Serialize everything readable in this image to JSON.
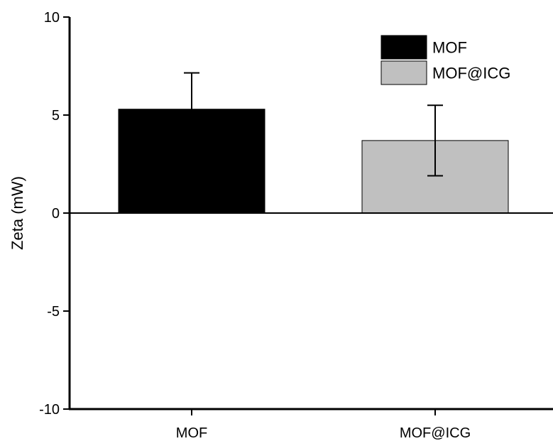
{
  "chart_data": {
    "type": "bar",
    "title": "",
    "xlabel": "",
    "ylabel": "Zeta (mW)",
    "ylim": [
      -10,
      10
    ],
    "yticks": [
      -10,
      -5,
      0,
      5,
      10
    ],
    "ytick_labels": [
      "-10",
      "-5",
      "0",
      "5",
      "10"
    ],
    "categories": [
      "MOF",
      "MOF@ICG"
    ],
    "values": [
      5.3,
      3.7
    ],
    "errors": [
      1.85,
      1.8
    ],
    "bar_colors": [
      "#000000",
      "#c0c0c0"
    ],
    "grid": false,
    "legend": {
      "position": "top-right",
      "entries": [
        {
          "label": "MOF",
          "color": "#000000"
        },
        {
          "label": "MOF@ICG",
          "color": "#c0c0c0"
        }
      ]
    }
  }
}
